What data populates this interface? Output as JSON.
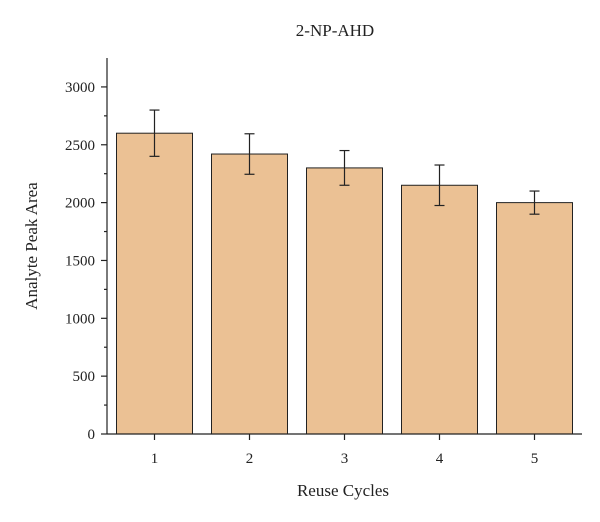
{
  "chart_data": {
    "type": "bar",
    "title": "2-NP-AHD",
    "xlabel": "Reuse Cycles",
    "ylabel": "Analyte Peak Area",
    "categories": [
      "1",
      "2",
      "3",
      "4",
      "5"
    ],
    "values": [
      2600,
      2420,
      2300,
      2150,
      2000
    ],
    "errors": [
      200,
      175,
      150,
      175,
      100
    ],
    "ylim": [
      0,
      3250
    ],
    "yticks": [
      0,
      500,
      1000,
      1500,
      2000,
      2500,
      3000
    ],
    "ytick_labels": [
      "0",
      "500",
      "1000",
      "1500",
      "2000",
      "2500",
      "3000"
    ],
    "bar_color": "#EBC194",
    "grid": false
  }
}
